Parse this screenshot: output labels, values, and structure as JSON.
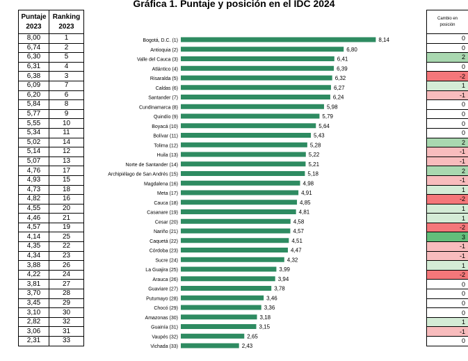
{
  "title": "Gráfica 1. Puntaje y posición en el IDC 2024",
  "left_table": {
    "header_score": [
      "Puntaje",
      "2023"
    ],
    "header_rank": [
      "Ranking",
      "2023"
    ],
    "rows": [
      {
        "score": "8,00",
        "rank": "1"
      },
      {
        "score": "6,74",
        "rank": "2"
      },
      {
        "score": "6,30",
        "rank": "5"
      },
      {
        "score": "6,31",
        "rank": "4"
      },
      {
        "score": "6,38",
        "rank": "3"
      },
      {
        "score": "6,09",
        "rank": "7"
      },
      {
        "score": "6,20",
        "rank": "6"
      },
      {
        "score": "5,84",
        "rank": "8"
      },
      {
        "score": "5,77",
        "rank": "9"
      },
      {
        "score": "5,55",
        "rank": "10"
      },
      {
        "score": "5,34",
        "rank": "11"
      },
      {
        "score": "5,02",
        "rank": "14"
      },
      {
        "score": "5,14",
        "rank": "12"
      },
      {
        "score": "5,07",
        "rank": "13"
      },
      {
        "score": "4,76",
        "rank": "17"
      },
      {
        "score": "4,93",
        "rank": "15"
      },
      {
        "score": "4,73",
        "rank": "18"
      },
      {
        "score": "4,82",
        "rank": "16"
      },
      {
        "score": "4,55",
        "rank": "20"
      },
      {
        "score": "4,46",
        "rank": "21"
      },
      {
        "score": "4,57",
        "rank": "19"
      },
      {
        "score": "4,14",
        "rank": "25"
      },
      {
        "score": "4,35",
        "rank": "22"
      },
      {
        "score": "4,34",
        "rank": "23"
      },
      {
        "score": "3,88",
        "rank": "26"
      },
      {
        "score": "4,22",
        "rank": "24"
      },
      {
        "score": "3,81",
        "rank": "27"
      },
      {
        "score": "3,70",
        "rank": "28"
      },
      {
        "score": "3,45",
        "rank": "29"
      },
      {
        "score": "3,10",
        "rank": "30"
      },
      {
        "score": "2,82",
        "rank": "32"
      },
      {
        "score": "3,06",
        "rank": "31"
      },
      {
        "score": "2,31",
        "rank": "33"
      }
    ]
  },
  "right_table": {
    "header": [
      "Cambio en",
      "posición"
    ],
    "rows": [
      {
        "value": "0",
        "color": "#ffffff"
      },
      {
        "value": "0",
        "color": "#ffffff"
      },
      {
        "value": "2",
        "color": "#a9d8b0"
      },
      {
        "value": "0",
        "color": "#ffffff"
      },
      {
        "value": "-2",
        "color": "#f4777a"
      },
      {
        "value": "1",
        "color": "#d4ecd6"
      },
      {
        "value": "-1",
        "color": "#f8bcbd"
      },
      {
        "value": "0",
        "color": "#ffffff"
      },
      {
        "value": "0",
        "color": "#ffffff"
      },
      {
        "value": "0",
        "color": "#ffffff"
      },
      {
        "value": "0",
        "color": "#ffffff"
      },
      {
        "value": "2",
        "color": "#a9d8b0"
      },
      {
        "value": "-1",
        "color": "#f8bcbd"
      },
      {
        "value": "-1",
        "color": "#f8bcbd"
      },
      {
        "value": "2",
        "color": "#a9d8b0"
      },
      {
        "value": "-1",
        "color": "#f8bcbd"
      },
      {
        "value": "1",
        "color": "#d4ecd6"
      },
      {
        "value": "-2",
        "color": "#f4777a"
      },
      {
        "value": "1",
        "color": "#d4ecd6"
      },
      {
        "value": "1",
        "color": "#d4ecd6"
      },
      {
        "value": "-2",
        "color": "#f4777a"
      },
      {
        "value": "3",
        "color": "#63be7b"
      },
      {
        "value": "-1",
        "color": "#f8bcbd"
      },
      {
        "value": "-1",
        "color": "#f8bcbd"
      },
      {
        "value": "1",
        "color": "#d4ecd6"
      },
      {
        "value": "-2",
        "color": "#f4777a"
      },
      {
        "value": "0",
        "color": "#ffffff"
      },
      {
        "value": "0",
        "color": "#ffffff"
      },
      {
        "value": "0",
        "color": "#ffffff"
      },
      {
        "value": "0",
        "color": "#ffffff"
      },
      {
        "value": "1",
        "color": "#d4ecd6"
      },
      {
        "value": "-1",
        "color": "#f8bcbd"
      },
      {
        "value": "0",
        "color": "#ffffff"
      }
    ]
  },
  "chart_data": {
    "type": "bar",
    "orientation": "horizontal",
    "bar_color": "#2e8b61",
    "xlim": [
      0,
      9
    ],
    "grid": false,
    "categories": [
      "Bogotá, D.C. (1)",
      "Antioquia (2)",
      "Valle del Cauca (3)",
      "Atlántico (4)",
      "Risaralda (5)",
      "Caldas (6)",
      "Santander (7)",
      "Cundinamarca (8)",
      "Quindío (9)",
      "Boyacá (10)",
      "Bolívar (11)",
      "Tolima (12)",
      "Huila (13)",
      "Norte de Santander (14)",
      "Archipiélago de San Andrés (15)",
      "Magdalena (16)",
      "Meta (17)",
      "Cauca (18)",
      "Casanare (19)",
      "Cesar (20)",
      "Nariño (21)",
      "Caquetá (22)",
      "Córdoba (23)",
      "Sucre (24)",
      "La Guajira (25)",
      "Arauca (26)",
      "Guaviare (27)",
      "Putumayo (28)",
      "Chocó (29)",
      "Amazonas (30)",
      "Guainía (31)",
      "Vaupés (32)",
      "Vichada (33)"
    ],
    "values": [
      8.14,
      6.8,
      6.41,
      6.39,
      6.32,
      6.27,
      6.24,
      5.98,
      5.79,
      5.64,
      5.43,
      5.28,
      5.22,
      5.21,
      5.18,
      4.98,
      4.91,
      4.85,
      4.81,
      4.58,
      4.57,
      4.51,
      4.47,
      4.32,
      3.99,
      3.94,
      3.78,
      3.46,
      3.36,
      3.18,
      3.15,
      2.65,
      2.43
    ],
    "value_labels": [
      "8,14",
      "6,80",
      "6,41",
      "6,39",
      "6,32",
      "6,27",
      "6,24",
      "5,98",
      "5,79",
      "5,64",
      "5,43",
      "5,28",
      "5,22",
      "5,21",
      "5,18",
      "4,98",
      "4,91",
      "4,85",
      "4,81",
      "4,58",
      "4,57",
      "4,51",
      "4,47",
      "4,32",
      "3,99",
      "3,94",
      "3,78",
      "3,46",
      "3,36",
      "3,18",
      "3,15",
      "2,65",
      "2,43"
    ]
  }
}
